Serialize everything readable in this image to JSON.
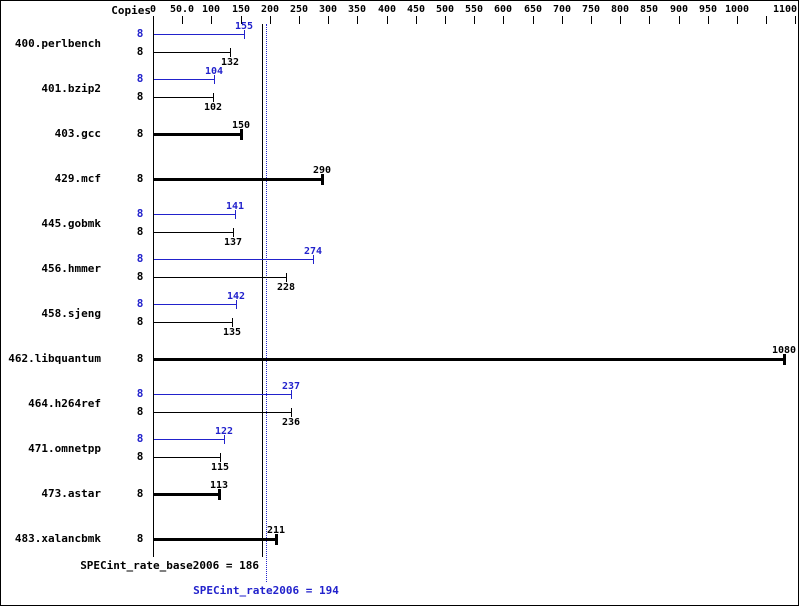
{
  "header": {
    "copies_label": "Copies"
  },
  "colors": {
    "peak": "#2222cc",
    "base": "#000000",
    "background": "#ffffff",
    "border": "#000000"
  },
  "chart_data": {
    "type": "bar",
    "orientation": "horizontal",
    "title": "",
    "xlabel": "",
    "ylabel": "",
    "grid": false,
    "axis": {
      "min": 0,
      "max": 1100,
      "tick_step": 50,
      "ticks": [
        {
          "value": 0,
          "label": "0"
        },
        {
          "value": 50,
          "label": "50.0"
        },
        {
          "value": 100,
          "label": "100"
        },
        {
          "value": 150,
          "label": "150"
        },
        {
          "value": 200,
          "label": "200"
        },
        {
          "value": 250,
          "label": "250"
        },
        {
          "value": 300,
          "label": "300"
        },
        {
          "value": 350,
          "label": "350"
        },
        {
          "value": 400,
          "label": "400"
        },
        {
          "value": 450,
          "label": "450"
        },
        {
          "value": 500,
          "label": "500"
        },
        {
          "value": 550,
          "label": "550"
        },
        {
          "value": 600,
          "label": "600"
        },
        {
          "value": 650,
          "label": "650"
        },
        {
          "value": 700,
          "label": "700"
        },
        {
          "value": 750,
          "label": "750"
        },
        {
          "value": 800,
          "label": "800"
        },
        {
          "value": 850,
          "label": "850"
        },
        {
          "value": 900,
          "label": "900"
        },
        {
          "value": 950,
          "label": "950"
        },
        {
          "value": 1000,
          "label": "1000"
        },
        {
          "value": 1050,
          "label": ""
        },
        {
          "value": 1100,
          "label": "1100"
        }
      ]
    },
    "benchmarks": [
      {
        "name": "400.perlbench",
        "copies": 8,
        "peak": 155,
        "base": 132
      },
      {
        "name": "401.bzip2",
        "copies": 8,
        "peak": 104,
        "base": 102
      },
      {
        "name": "403.gcc",
        "copies": 8,
        "peak": null,
        "base": 150
      },
      {
        "name": "429.mcf",
        "copies": 8,
        "peak": null,
        "base": 290
      },
      {
        "name": "445.gobmk",
        "copies": 8,
        "peak": 141,
        "base": 137
      },
      {
        "name": "456.hmmer",
        "copies": 8,
        "peak": 274,
        "base": 228
      },
      {
        "name": "458.sjeng",
        "copies": 8,
        "peak": 142,
        "base": 135
      },
      {
        "name": "462.libquantum",
        "copies": 8,
        "peak": null,
        "base": 1080
      },
      {
        "name": "464.h264ref",
        "copies": 8,
        "peak": 237,
        "base": 236
      },
      {
        "name": "471.omnetpp",
        "copies": 8,
        "peak": 122,
        "base": 115
      },
      {
        "name": "473.astar",
        "copies": 8,
        "peak": null,
        "base": 113
      },
      {
        "name": "483.xalancbmk",
        "copies": 8,
        "peak": null,
        "base": 211
      }
    ],
    "summary": {
      "base_label": "SPECint_rate_base2006",
      "base_value": 186,
      "base_text": "SPECint_rate_base2006 = 186",
      "peak_label": "SPECint_rate2006",
      "peak_value": 194,
      "peak_text": "SPECint_rate2006 = 194"
    }
  }
}
